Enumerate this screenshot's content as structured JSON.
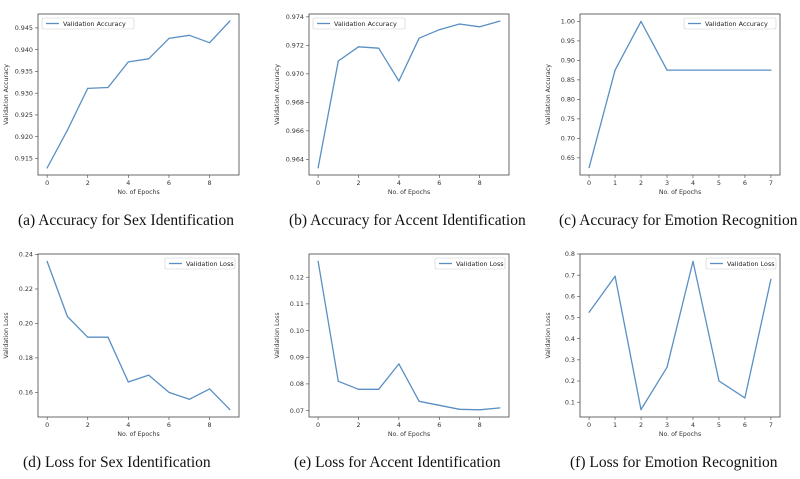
{
  "figure": {
    "colors": {
      "line": "#5a8fc4",
      "axes": "#444444",
      "legend_border": "#cfcfcf"
    }
  },
  "chart_data": [
    {
      "type": "line",
      "caption": "(a) Accuracy for Sex Identification",
      "xlabel": "No. of Epochs",
      "ylabel": "Validation Accuracy",
      "legend": "top-left",
      "series": [
        {
          "name": "Validation Accuracy",
          "x": [
            0,
            1,
            2,
            3,
            4,
            5,
            6,
            7,
            8,
            9
          ],
          "values": [
            0.9128,
            0.9215,
            0.9311,
            0.9313,
            0.9372,
            0.9379,
            0.9426,
            0.9433,
            0.9416,
            0.9466
          ]
        }
      ],
      "xlim": [
        -0.45,
        9.45
      ],
      "ylim": [
        0.9112,
        0.9482
      ],
      "xticks": [
        0,
        2,
        4,
        6,
        8
      ],
      "xticklabels": [
        "0",
        "2",
        "4",
        "6",
        "8"
      ],
      "yticks": [
        0.915,
        0.92,
        0.925,
        0.93,
        0.935,
        0.94,
        0.945
      ],
      "yticklabels": [
        "0.915",
        "0.920",
        "0.925",
        "0.930",
        "0.935",
        "0.940",
        "0.945"
      ]
    },
    {
      "type": "line",
      "caption": "(b) Accuracy for Accent Identification",
      "xlabel": "No. of Epochs",
      "ylabel": "Validation Accuracy",
      "legend": "top-left",
      "series": [
        {
          "name": "Validation Accuracy",
          "x": [
            0,
            1,
            2,
            3,
            4,
            5,
            6,
            7,
            8,
            9
          ],
          "values": [
            0.9634,
            0.9709,
            0.9719,
            0.9718,
            0.9695,
            0.9725,
            0.9731,
            0.9735,
            0.9733,
            0.9737
          ]
        }
      ],
      "xlim": [
        -0.45,
        9.45
      ],
      "ylim": [
        0.9629,
        0.9742
      ],
      "xticks": [
        0,
        2,
        4,
        6,
        8
      ],
      "xticklabels": [
        "0",
        "2",
        "4",
        "6",
        "8"
      ],
      "yticks": [
        0.964,
        0.966,
        0.968,
        0.97,
        0.972,
        0.974
      ],
      "yticklabels": [
        "0.964",
        "0.966",
        "0.968",
        "0.970",
        "0.972",
        "0.974"
      ]
    },
    {
      "type": "line",
      "caption": "(c) Accuracy for Emotion Recognition",
      "xlabel": "No. of Epochs",
      "ylabel": "Validation Accuracy",
      "legend": "top-right",
      "series": [
        {
          "name": "Validation Accuracy",
          "x": [
            0,
            1,
            2,
            3,
            4,
            5,
            6,
            7
          ],
          "values": [
            0.625,
            0.875,
            1.0,
            0.875,
            0.875,
            0.875,
            0.875,
            0.875
          ]
        }
      ],
      "xlim": [
        -0.35,
        7.35
      ],
      "ylim": [
        0.606,
        1.019
      ],
      "xticks": [
        0,
        1,
        2,
        3,
        4,
        5,
        6,
        7
      ],
      "xticklabels": [
        "0",
        "1",
        "2",
        "3",
        "4",
        "5",
        "6",
        "7"
      ],
      "yticks": [
        0.65,
        0.7,
        0.75,
        0.8,
        0.85,
        0.9,
        0.95,
        1.0
      ],
      "yticklabels": [
        "0.65",
        "0.70",
        "0.75",
        "0.80",
        "0.85",
        "0.90",
        "0.95",
        "1.00"
      ]
    },
    {
      "type": "line",
      "caption": "(d) Loss for Sex Identification",
      "xlabel": "No. of Epochs",
      "ylabel": "Validation Loss",
      "legend": "top-right",
      "series": [
        {
          "name": "Validation Loss",
          "x": [
            0,
            1,
            2,
            3,
            4,
            5,
            6,
            7,
            8,
            9
          ],
          "values": [
            0.236,
            0.204,
            0.192,
            0.192,
            0.166,
            0.17,
            0.16,
            0.156,
            0.162,
            0.15
          ]
        }
      ],
      "xlim": [
        -0.45,
        9.45
      ],
      "ylim": [
        0.1457,
        0.2403
      ],
      "xticks": [
        0,
        2,
        4,
        6,
        8
      ],
      "xticklabels": [
        "0",
        "2",
        "4",
        "6",
        "8"
      ],
      "yticks": [
        0.16,
        0.18,
        0.2,
        0.22,
        0.24
      ],
      "yticklabels": [
        "0.16",
        "0.18",
        "0.20",
        "0.22",
        "0.24"
      ]
    },
    {
      "type": "line",
      "caption": "(e) Loss for Accent Identification",
      "xlabel": "No. of Epochs",
      "ylabel": "Validation Loss",
      "legend": "top-right",
      "series": [
        {
          "name": "Validation Loss",
          "x": [
            0,
            1,
            2,
            3,
            4,
            5,
            6,
            7,
            8,
            9
          ],
          "values": [
            0.126,
            0.081,
            0.078,
            0.078,
            0.0875,
            0.0735,
            0.072,
            0.0705,
            0.0703,
            0.071
          ]
        }
      ],
      "xlim": [
        -0.45,
        9.45
      ],
      "ylim": [
        0.0676,
        0.1287
      ],
      "xticks": [
        0,
        2,
        4,
        6,
        8
      ],
      "xticklabels": [
        "0",
        "2",
        "4",
        "6",
        "8"
      ],
      "yticks": [
        0.07,
        0.08,
        0.09,
        0.1,
        0.11,
        0.12
      ],
      "yticklabels": [
        "0.07",
        "0.08",
        "0.09",
        "0.10",
        "0.11",
        "0.12"
      ]
    },
    {
      "type": "line",
      "caption": "(f) Loss for Emotion Recognition",
      "xlabel": "No. of Epochs",
      "ylabel": "Validation Loss",
      "legend": "top-right",
      "series": [
        {
          "name": "Validation Loss",
          "x": [
            0,
            1,
            2,
            3,
            4,
            5,
            6,
            7
          ],
          "values": [
            0.525,
            0.695,
            0.065,
            0.265,
            0.765,
            0.2,
            0.12,
            0.68
          ]
        }
      ],
      "xlim": [
        -0.35,
        7.35
      ],
      "ylim": [
        0.03,
        0.8
      ],
      "xticks": [
        0,
        1,
        2,
        3,
        4,
        5,
        6,
        7
      ],
      "xticklabels": [
        "0",
        "1",
        "2",
        "3",
        "4",
        "5",
        "6",
        "7"
      ],
      "yticks": [
        0.1,
        0.2,
        0.3,
        0.4,
        0.5,
        0.6,
        0.7,
        0.8
      ],
      "yticklabels": [
        "0.1",
        "0.2",
        "0.3",
        "0.4",
        "0.5",
        "0.6",
        "0.7",
        "0.8"
      ]
    }
  ]
}
